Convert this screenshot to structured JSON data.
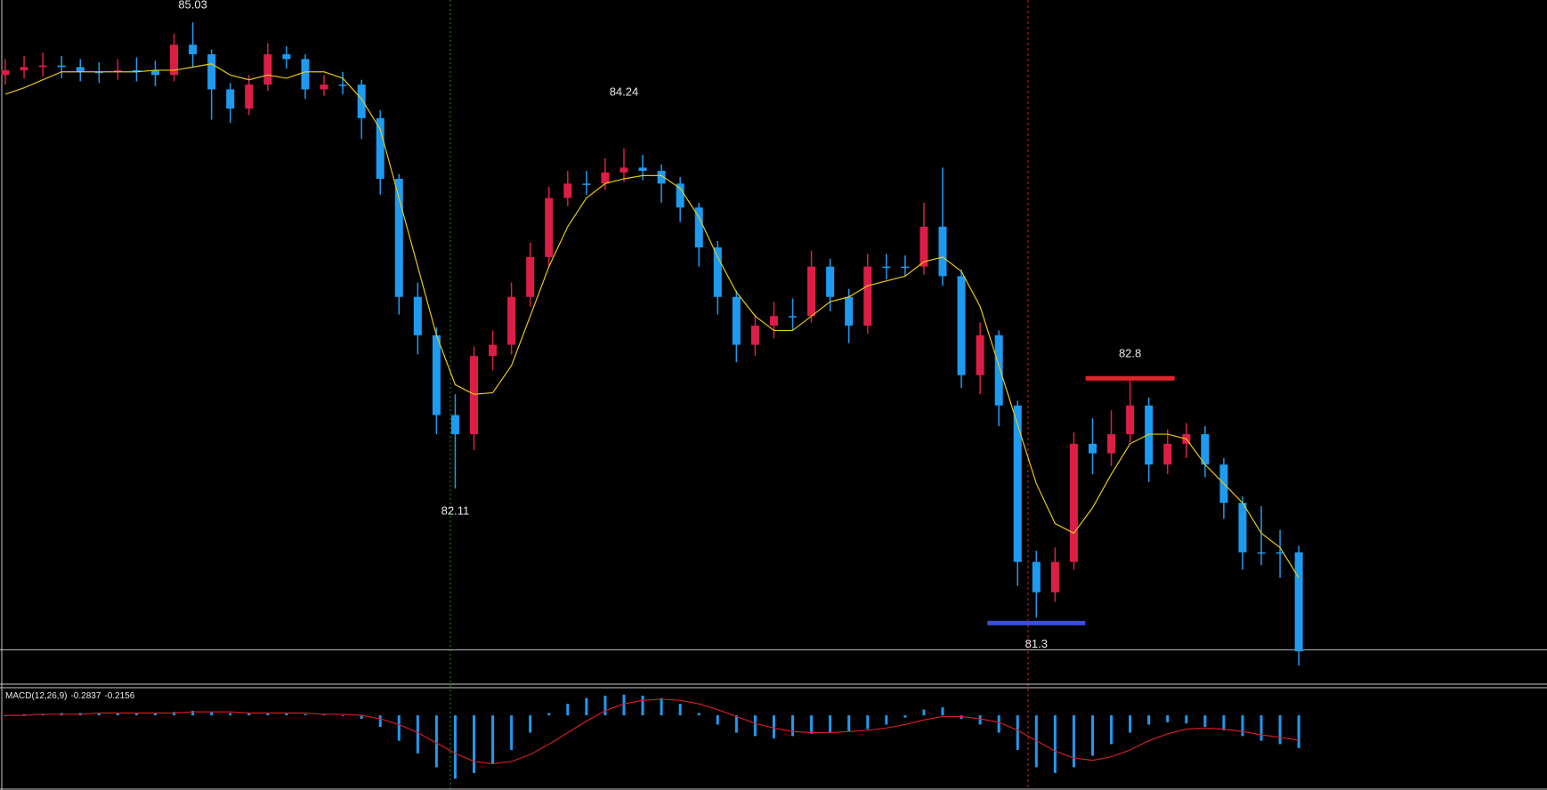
{
  "chart_data": {
    "type": "candlestick",
    "up_color": "#dc1e46",
    "down_color": "#1e9bf0",
    "ma_color": "#e6c619",
    "ylim": [
      80.89,
      85.17
    ],
    "price_line": 81.1,
    "open": [
      84.7,
      84.73,
      84.75,
      84.76,
      84.75,
      84.72,
      84.72,
      84.73,
      84.73,
      84.7,
      84.89,
      84.83,
      84.61,
      84.49,
      84.64,
      84.83,
      84.8,
      84.61,
      84.64,
      84.64,
      84.43,
      84.05,
      83.31,
      83.07,
      82.57,
      82.45,
      82.94,
      83.01,
      83.31,
      83.56,
      83.93,
      84.02,
      84.02,
      84.09,
      84.12,
      84.1,
      84.02,
      83.87,
      83.62,
      83.31,
      83.01,
      83.13,
      83.19,
      83.19,
      83.5,
      83.31,
      83.13,
      83.5,
      83.5,
      83.5,
      83.75,
      83.44,
      82.82,
      83.07,
      82.63,
      81.65,
      81.46,
      81.65,
      82.39,
      82.33,
      82.45,
      82.63,
      82.26,
      82.39,
      82.45,
      82.26,
      82.02,
      81.71,
      81.71,
      81.71
    ],
    "high": [
      84.8,
      84.82,
      84.84,
      84.82,
      84.8,
      84.78,
      84.8,
      84.81,
      84.79,
      84.96,
      85.03,
      84.86,
      84.65,
      84.7,
      84.9,
      84.88,
      84.83,
      84.7,
      84.72,
      84.67,
      84.48,
      84.08,
      83.4,
      83.12,
      82.7,
      83.0,
      83.1,
      83.4,
      83.65,
      84.0,
      84.1,
      84.1,
      84.18,
      84.24,
      84.2,
      84.14,
      84.06,
      83.9,
      83.66,
      83.35,
      83.2,
      83.28,
      83.3,
      83.6,
      83.55,
      83.36,
      83.58,
      83.58,
      83.57,
      83.9,
      84.12,
      83.48,
      83.15,
      83.1,
      82.66,
      81.72,
      81.74,
      82.46,
      82.55,
      82.6,
      82.8,
      82.68,
      82.48,
      82.52,
      82.5,
      82.3,
      82.06,
      82.0,
      81.85,
      81.75
    ],
    "low": [
      84.64,
      84.68,
      84.69,
      84.68,
      84.66,
      84.65,
      84.67,
      84.66,
      84.63,
      84.66,
      84.75,
      84.42,
      84.4,
      84.45,
      84.6,
      84.74,
      84.55,
      84.57,
      84.58,
      84.3,
      83.95,
      83.2,
      82.95,
      82.45,
      82.11,
      82.35,
      82.85,
      82.95,
      83.25,
      83.5,
      83.88,
      83.95,
      83.98,
      84.03,
      84.04,
      83.9,
      83.78,
      83.5,
      83.2,
      82.9,
      82.94,
      83.05,
      83.1,
      83.15,
      83.22,
      83.02,
      83.08,
      83.42,
      83.44,
      83.45,
      83.38,
      82.74,
      82.7,
      82.5,
      81.5,
      81.3,
      81.4,
      81.6,
      82.2,
      82.25,
      82.4,
      82.15,
      82.2,
      82.3,
      82.18,
      81.92,
      81.6,
      81.63,
      81.55,
      81.0
    ],
    "close": [
      84.73,
      84.75,
      84.76,
      84.75,
      84.72,
      84.72,
      84.73,
      84.73,
      84.7,
      84.89,
      84.83,
      84.61,
      84.49,
      84.64,
      84.83,
      84.8,
      84.61,
      84.64,
      84.64,
      84.43,
      84.05,
      83.31,
      83.07,
      82.57,
      82.45,
      82.94,
      83.01,
      83.31,
      83.56,
      83.93,
      84.02,
      84.02,
      84.09,
      84.12,
      84.1,
      84.02,
      83.87,
      83.62,
      83.31,
      83.01,
      83.13,
      83.19,
      83.19,
      83.5,
      83.31,
      83.13,
      83.5,
      83.5,
      83.5,
      83.75,
      83.44,
      82.82,
      83.07,
      82.63,
      81.65,
      81.46,
      81.65,
      82.39,
      82.33,
      82.45,
      82.63,
      82.26,
      82.39,
      82.45,
      82.26,
      82.02,
      81.71,
      81.71,
      81.71,
      81.09
    ],
    "ma": [
      84.58,
      84.62,
      84.67,
      84.72,
      84.72,
      84.72,
      84.72,
      84.72,
      84.73,
      84.73,
      84.75,
      84.77,
      84.7,
      84.67,
      84.7,
      84.68,
      84.72,
      84.72,
      84.68,
      84.55,
      84.36,
      83.93,
      83.5,
      83.07,
      82.76,
      82.7,
      82.71,
      82.88,
      83.19,
      83.5,
      83.75,
      83.93,
      84.02,
      84.05,
      84.07,
      84.07,
      83.99,
      83.81,
      83.56,
      83.34,
      83.19,
      83.1,
      83.1,
      83.19,
      83.28,
      83.31,
      83.38,
      83.41,
      83.44,
      83.53,
      83.56,
      83.47,
      83.25,
      82.88,
      82.51,
      82.14,
      81.89,
      81.83,
      81.99,
      82.2,
      82.39,
      82.45,
      82.45,
      82.42,
      82.26,
      82.14,
      82.02,
      81.83,
      81.74,
      81.55
    ],
    "annotations": [
      {
        "value": 85.03
      },
      {
        "value": 84.24
      },
      {
        "value": 82.11
      },
      {
        "value": 82.8,
        "color": "#e8202a"
      },
      {
        "value": 81.3,
        "color": "#3a4fd8"
      }
    ],
    "macd": {
      "type": "bar",
      "label": "MACD(12,26,9)",
      "macd_value": -0.2837,
      "signal_value": -0.2156,
      "color": "#1e9bf0",
      "signal_color": "#d01c28",
      "ylim": [
        -0.64,
        0.24
      ],
      "histogram": [
        0.0,
        0.01,
        0.01,
        0.02,
        0.02,
        0.02,
        0.02,
        0.02,
        0.02,
        0.03,
        0.04,
        0.03,
        0.02,
        0.02,
        0.02,
        0.02,
        0.01,
        0.01,
        0.0,
        -0.03,
        -0.1,
        -0.22,
        -0.33,
        -0.45,
        -0.55,
        -0.5,
        -0.42,
        -0.3,
        -0.15,
        0.02,
        0.1,
        0.15,
        0.17,
        0.18,
        0.17,
        0.15,
        0.1,
        0.02,
        -0.08,
        -0.15,
        -0.18,
        -0.2,
        -0.18,
        -0.16,
        -0.15,
        -0.14,
        -0.12,
        -0.08,
        -0.02,
        0.05,
        0.07,
        -0.03,
        -0.08,
        -0.15,
        -0.3,
        -0.45,
        -0.5,
        -0.45,
        -0.35,
        -0.25,
        -0.15,
        -0.08,
        -0.06,
        -0.07,
        -0.1,
        -0.13,
        -0.18,
        -0.22,
        -0.25,
        -0.2837
      ],
      "signal": [
        0.0,
        0.0,
        0.01,
        0.01,
        0.01,
        0.02,
        0.02,
        0.02,
        0.02,
        0.02,
        0.03,
        0.03,
        0.03,
        0.02,
        0.02,
        0.02,
        0.02,
        0.01,
        0.01,
        0.0,
        -0.03,
        -0.08,
        -0.15,
        -0.24,
        -0.33,
        -0.4,
        -0.42,
        -0.4,
        -0.34,
        -0.25,
        -0.15,
        -0.05,
        0.04,
        0.1,
        0.13,
        0.14,
        0.13,
        0.1,
        0.05,
        -0.01,
        -0.07,
        -0.11,
        -0.14,
        -0.15,
        -0.15,
        -0.14,
        -0.13,
        -0.11,
        -0.08,
        -0.04,
        -0.01,
        -0.01,
        -0.03,
        -0.06,
        -0.13,
        -0.22,
        -0.31,
        -0.37,
        -0.39,
        -0.36,
        -0.3,
        -0.22,
        -0.16,
        -0.12,
        -0.11,
        -0.12,
        -0.14,
        -0.17,
        -0.19,
        -0.2156
      ]
    }
  }
}
